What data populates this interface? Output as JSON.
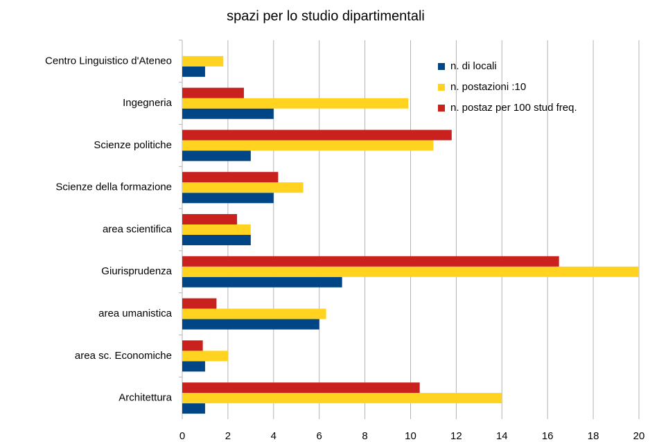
{
  "chart_data": {
    "type": "barh",
    "title": "spazi per lo studio dipartimentali",
    "categories": [
      "Centro Linguistico d'Ateneo",
      "Ingegneria",
      "Scienze politiche",
      "Scienze della formazione",
      "area scientifica",
      "Giurisprudenza",
      "area umanistica",
      "area sc. Economiche",
      "Architettura"
    ],
    "series": [
      {
        "name": "n. di locali",
        "color": "#004586",
        "values": [
          1,
          4,
          3,
          4,
          3,
          7,
          6,
          1,
          1
        ]
      },
      {
        "name": "n. postazioni :10",
        "color": "#ffd320",
        "values": [
          1.8,
          9.9,
          11,
          5.3,
          3,
          20,
          6.3,
          2,
          14
        ]
      },
      {
        "name": "n. postaz per 100 stud freq.",
        "color": "#c9211e",
        "values": [
          null,
          2.7,
          11.8,
          4.2,
          2.4,
          16.5,
          1.5,
          0.9,
          10.4
        ]
      }
    ],
    "xlim": [
      0,
      20
    ],
    "xticks": [
      0,
      2,
      4,
      6,
      8,
      10,
      12,
      14,
      16,
      18,
      20
    ],
    "grid": true,
    "legend": "top-right"
  }
}
